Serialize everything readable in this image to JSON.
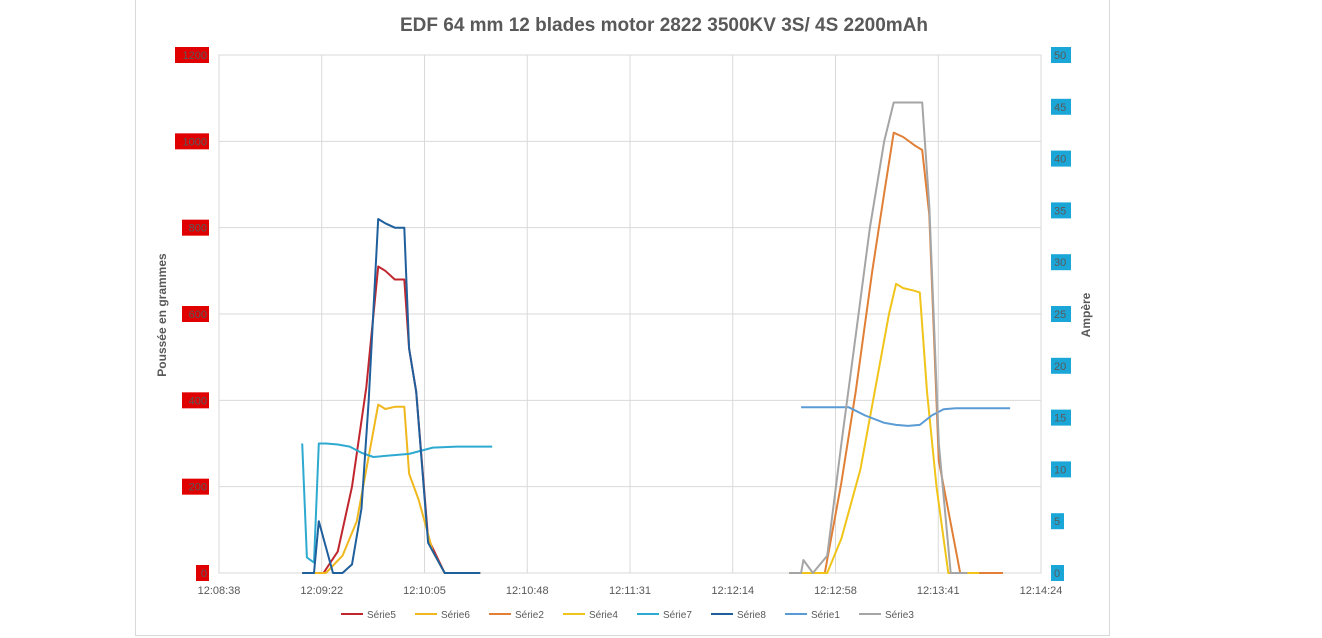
{
  "chart_data": {
    "type": "line",
    "title": "EDF 64 mm 12 blades motor 2822 3500KV 3S/ 4S 2200mAh",
    "ylabel_left": "Poussée en grammes",
    "ylabel_right": "Ampère",
    "xlabel": "",
    "ylim_left": [
      0,
      1200
    ],
    "ylim_right": [
      0,
      50
    ],
    "y_ticks_left": [
      0,
      200,
      400,
      600,
      800,
      1000,
      1200
    ],
    "y_ticks_right": [
      0,
      5,
      10,
      15,
      20,
      25,
      30,
      35,
      40,
      45,
      50
    ],
    "x_tick_labels": [
      "12:08:38",
      "12:09:22",
      "12:10:05",
      "12:10:48",
      "12:11:31",
      "12:12:14",
      "12:12:58",
      "12:13:41",
      "12:14:24"
    ],
    "x_range_seconds": [
      0,
      346
    ],
    "left_tick_label_bg": "#e00000",
    "right_tick_label_bg": "#1ba6d8",
    "grid": true,
    "legend_position": "bottom",
    "series": [
      {
        "name": "Série5",
        "axis": "left",
        "color": "#c0262d",
        "x": [
          35,
          44,
          50,
          56,
          62,
          67,
          70,
          74,
          78,
          80,
          83,
          88,
          95,
          100,
          110
        ],
        "y": [
          0,
          0,
          50,
          200,
          430,
          710,
          700,
          680,
          680,
          520,
          420,
          80,
          0,
          0,
          0
        ]
      },
      {
        "name": "Série6",
        "axis": "left",
        "color": "#f0b81e",
        "x": [
          35,
          45,
          52,
          58,
          63,
          67,
          70,
          74,
          78,
          80,
          84,
          90,
          95,
          100,
          110
        ],
        "y": [
          0,
          0,
          40,
          120,
          270,
          390,
          380,
          385,
          385,
          230,
          170,
          50,
          0,
          0,
          0
        ]
      },
      {
        "name": "Série2",
        "axis": "left",
        "color": "#e07f35",
        "x": [
          240,
          255,
          262,
          268,
          275,
          280,
          284,
          288,
          293,
          296,
          299,
          303,
          312,
          320,
          330
        ],
        "y": [
          0,
          0,
          210,
          420,
          700,
          880,
          1020,
          1010,
          990,
          980,
          830,
          260,
          0,
          0,
          0
        ]
      },
      {
        "name": "Série4",
        "axis": "left",
        "color": "#f0c419",
        "x": [
          240,
          256,
          262,
          270,
          276,
          282,
          285,
          288,
          292,
          295,
          298,
          302,
          307,
          312,
          320
        ],
        "y": [
          0,
          0,
          80,
          240,
          420,
          600,
          670,
          660,
          655,
          650,
          420,
          200,
          0,
          0,
          0
        ]
      },
      {
        "name": "Série7",
        "axis": "right",
        "color": "#2eaad1",
        "x": [
          35,
          37,
          40,
          42,
          45,
          50,
          55,
          60,
          65,
          70,
          80,
          90,
          100,
          115
        ],
        "y": [
          12.5,
          1.5,
          1,
          12.5,
          12.5,
          12.4,
          12.2,
          11.6,
          11.2,
          11.3,
          11.5,
          12.1,
          12.2,
          12.2
        ]
      },
      {
        "name": "Série8",
        "axis": "left",
        "color": "#1f5f9c",
        "x": [
          35,
          40,
          42,
          45,
          48,
          52,
          56,
          60,
          63,
          67,
          70,
          74,
          78,
          80,
          83,
          88,
          95,
          110
        ],
        "y": [
          0,
          0,
          120,
          60,
          0,
          0,
          20,
          150,
          400,
          820,
          810,
          800,
          800,
          520,
          420,
          70,
          0,
          0
        ]
      },
      {
        "name": "Série1",
        "axis": "right",
        "color": "#5b9bd5",
        "x": [
          245,
          255,
          265,
          272,
          280,
          285,
          290,
          295,
          300,
          305,
          310,
          320,
          333
        ],
        "y": [
          16,
          16,
          16,
          15.2,
          14.5,
          14.3,
          14.2,
          14.3,
          15.2,
          15.8,
          15.9,
          15.9,
          15.9
        ]
      },
      {
        "name": "Série3",
        "axis": "left",
        "color": "#a5a5a5",
        "x": [
          240,
          245,
          246,
          250,
          256,
          262,
          268,
          274,
          280,
          284,
          288,
          292,
          296,
          299,
          303,
          308,
          315
        ],
        "y": [
          0,
          0,
          30,
          0,
          40,
          300,
          550,
          800,
          1000,
          1090,
          1090,
          1090,
          1090,
          850,
          300,
          0,
          0
        ]
      }
    ]
  }
}
